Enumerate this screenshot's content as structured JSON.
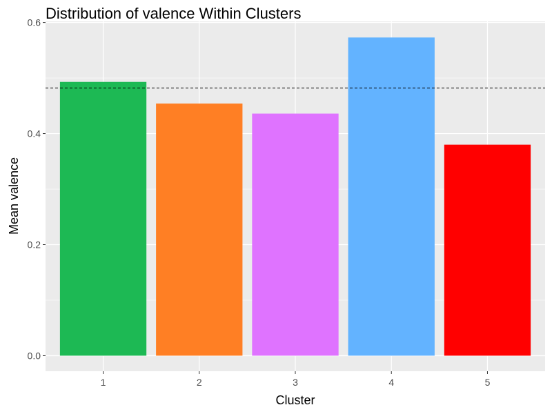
{
  "chart_data": {
    "type": "bar",
    "title": "Distribution of valence Within Clusters",
    "xlabel": "Cluster",
    "ylabel": "Mean valence",
    "categories": [
      "1",
      "2",
      "3",
      "4",
      "5"
    ],
    "values": [
      0.493,
      0.454,
      0.436,
      0.573,
      0.38
    ],
    "bar_colors": [
      "#1DB954",
      "#FF7F24",
      "#DF73FF",
      "#63B3FF",
      "#FF0000"
    ],
    "ylim": [
      -0.028,
      0.602
    ],
    "y_ticks": [
      0.0,
      0.2,
      0.4,
      0.6
    ],
    "y_tick_labels": [
      "0.0",
      "0.2",
      "0.4",
      "0.6"
    ],
    "reference_line": {
      "y": 0.482,
      "style": "dashed",
      "color": "#000000"
    },
    "grid": true,
    "panel_background": "#EBEBEB",
    "grid_color": "#FFFFFF",
    "legend": "none"
  }
}
